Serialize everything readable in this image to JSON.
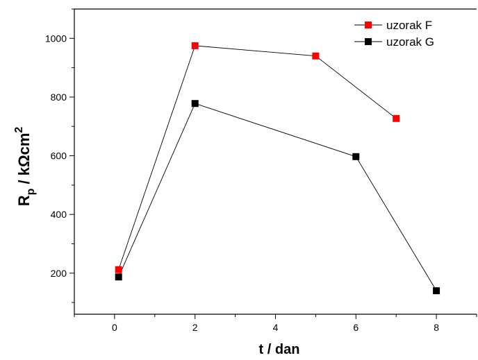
{
  "chart_data": {
    "type": "line",
    "xlabel": "t / dan",
    "ylabel": {
      "base": "R",
      "sub": "p",
      "mid": " / kΩcm",
      "sup": "2"
    },
    "xlim": [
      -1,
      9
    ],
    "ylim": [
      60,
      1100
    ],
    "xticks": [
      0,
      2,
      4,
      6,
      8
    ],
    "yticks": [
      200,
      400,
      600,
      800,
      1000
    ],
    "grid": false,
    "legend_position": "top-right",
    "series": [
      {
        "name": "uzorak F",
        "color": "#ff0000",
        "marker": "square",
        "x": [
          0.1,
          2,
          5,
          7
        ],
        "y": [
          212,
          975,
          940,
          727
        ]
      },
      {
        "name": "uzorak G",
        "color": "#000000",
        "marker": "square",
        "x": [
          0.1,
          2,
          6,
          8
        ],
        "y": [
          187,
          778,
          597,
          140
        ]
      }
    ]
  }
}
